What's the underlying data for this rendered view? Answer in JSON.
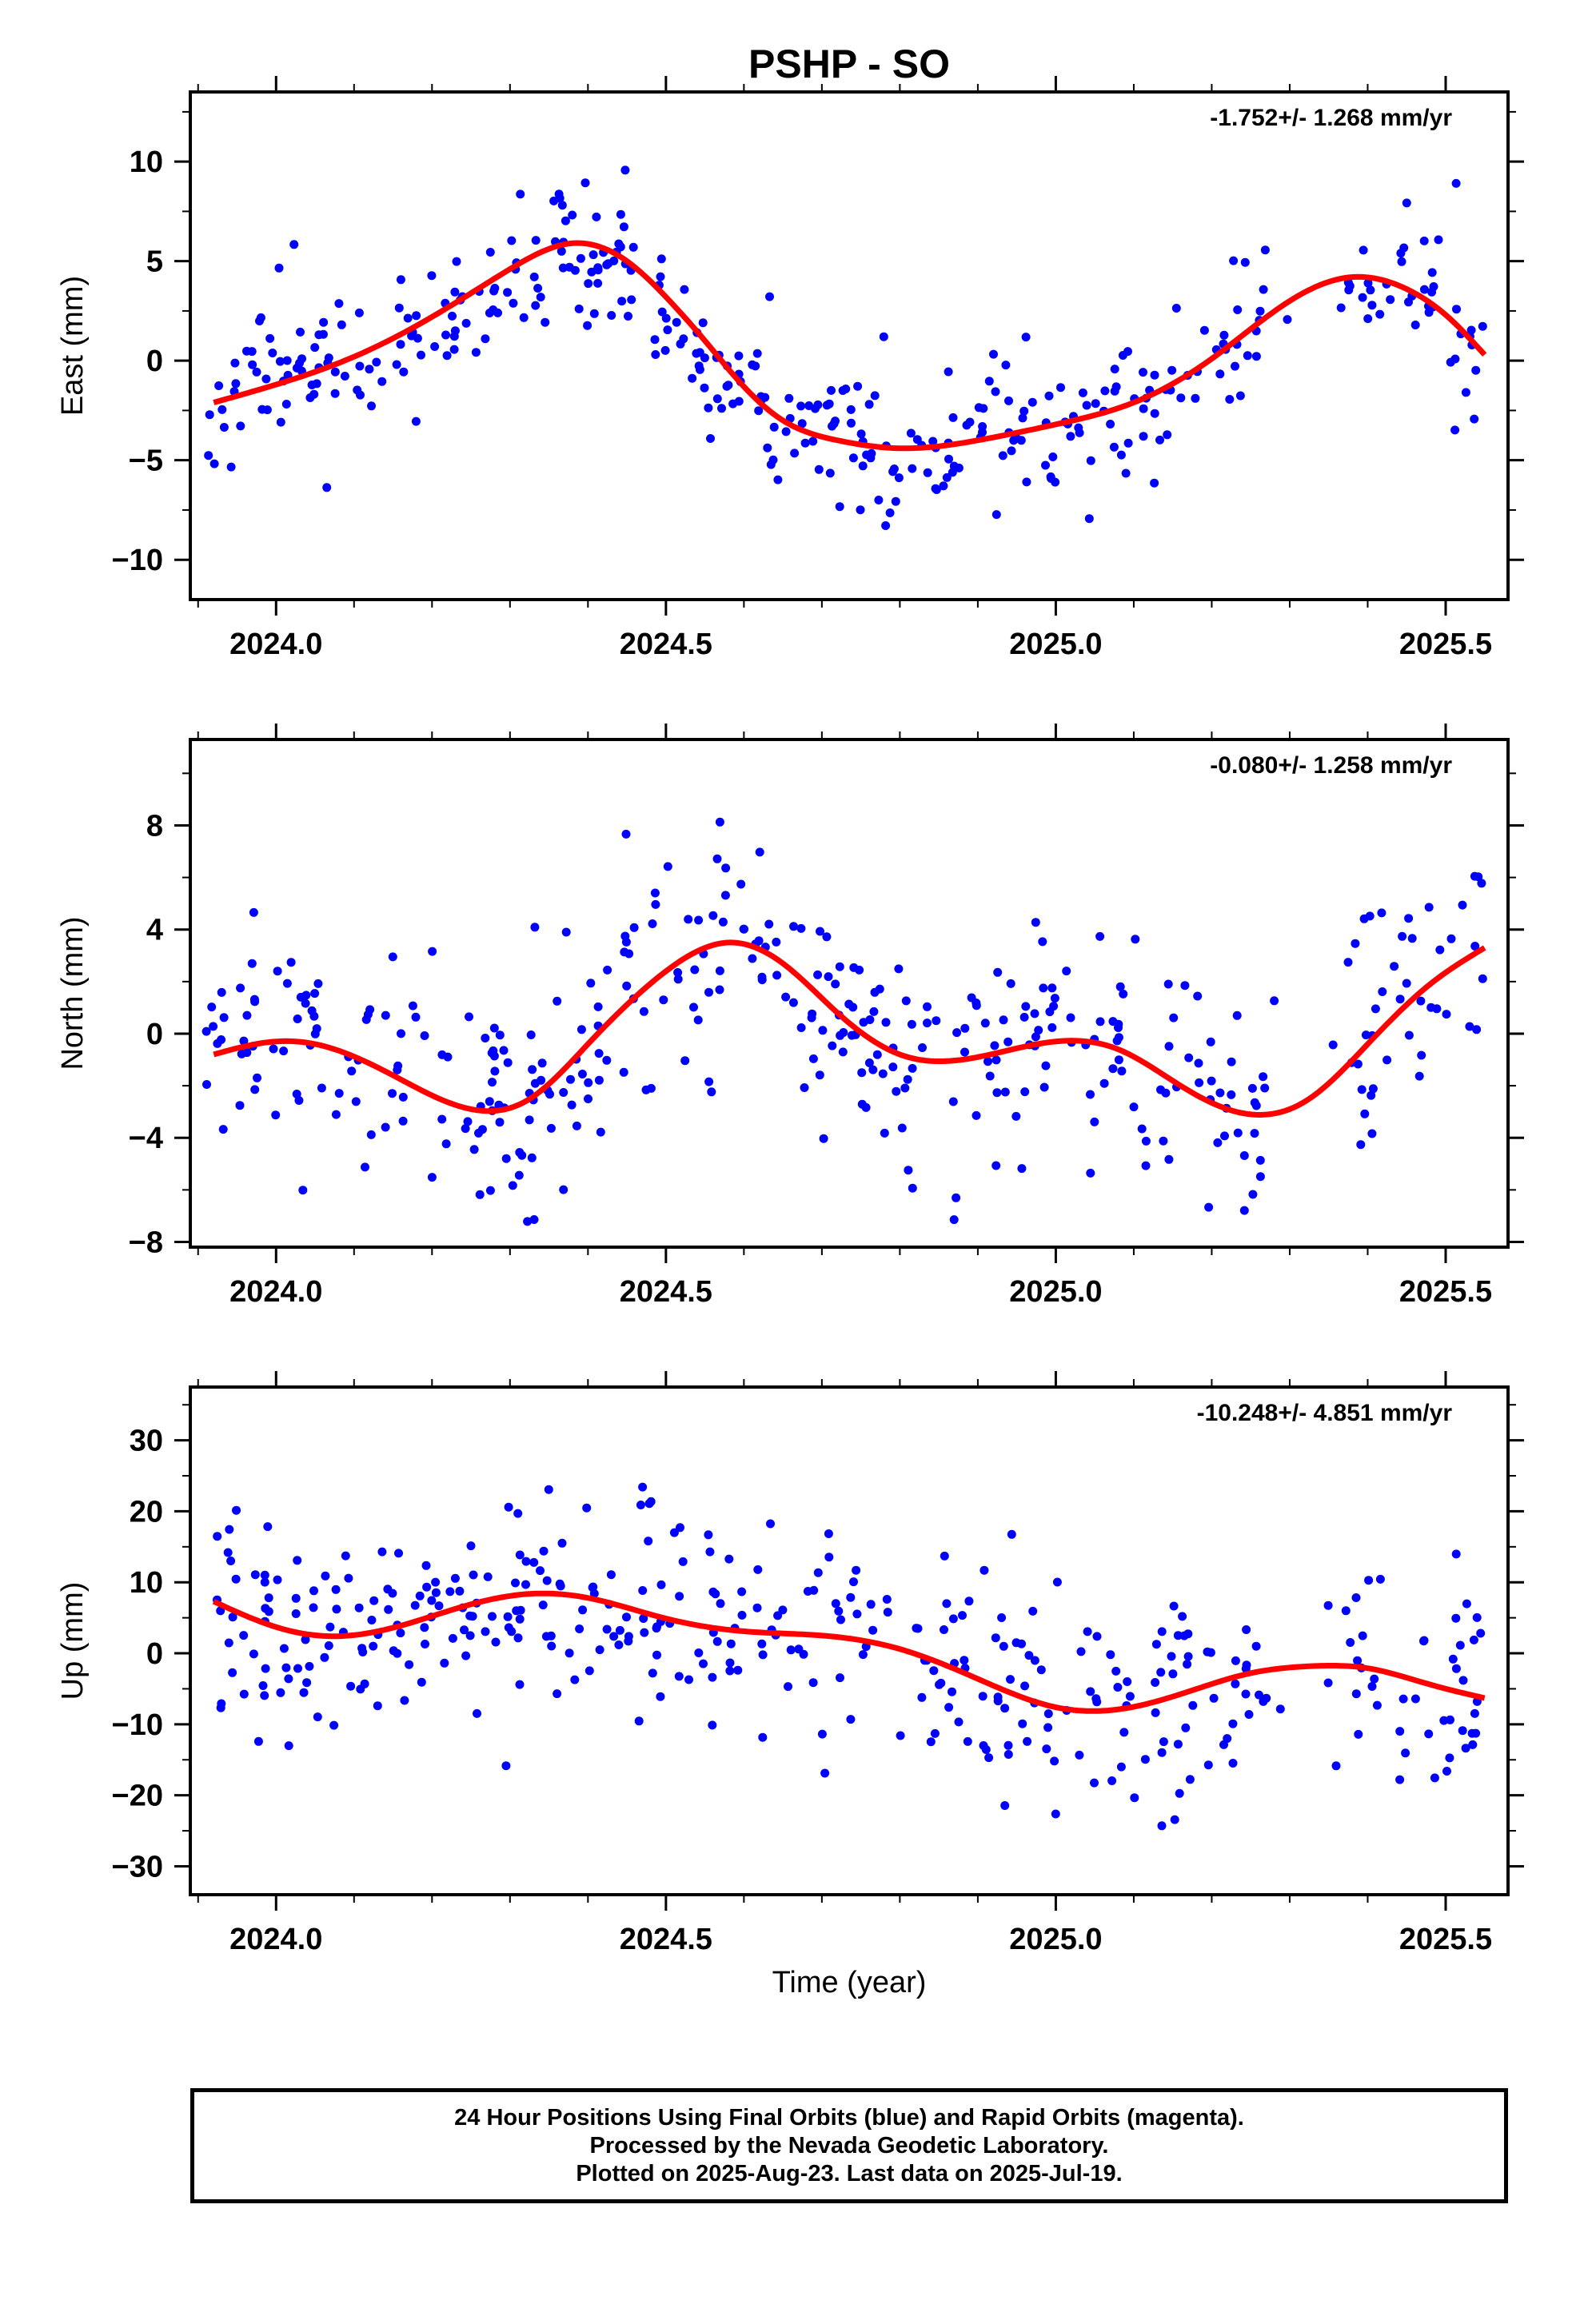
{
  "title": "PSHP - SO",
  "xlabel": "Time (year)",
  "footer": {
    "line1": "24 Hour Positions Using Final Orbits (blue) and Rapid Orbits (magenta).",
    "line2": "Processed by the Nevada Geodetic Laboratory.",
    "line3": "Plotted on 2025-Aug-23. Last data on 2025-Jul-19."
  },
  "colors": {
    "points": "#0000ff",
    "fit": "#ff0000",
    "axis": "#000000"
  },
  "chart_data": [
    {
      "type": "scatter",
      "ylabel": "East (mm)",
      "rate_label": "-1.752+/- 1.268 mm/yr",
      "xlim": [
        2023.89,
        2025.58
      ],
      "ylim": [
        -12,
        13.5
      ],
      "xticks": [
        2024.0,
        2024.5,
        2025.0,
        2025.5
      ],
      "xtick_labels": [
        "2024.0",
        "2024.5",
        "2025.0",
        "2025.5"
      ],
      "yticks": [
        -10,
        -5,
        0,
        5,
        10
      ],
      "ytick_labels": [
        "−10",
        "−5",
        "0",
        "5",
        "10"
      ],
      "x_range": [
        2023.91,
        2025.55
      ],
      "fit": {
        "x": [
          2023.92,
          2024.0,
          2024.1,
          2024.2,
          2024.3,
          2024.38,
          2024.45,
          2024.5,
          2024.55,
          2024.6,
          2024.65,
          2024.72,
          2024.8,
          2024.9,
          2025.0,
          2025.1,
          2025.2,
          2025.3,
          2025.38,
          2025.45,
          2025.5,
          2025.55
        ],
        "y": [
          -2.1,
          -1.2,
          0.2,
          2.2,
          4.6,
          5.9,
          5.0,
          3.2,
          1.0,
          -1.3,
          -3.0,
          -4.0,
          -4.4,
          -4.0,
          -3.2,
          -2.1,
          0.1,
          3.0,
          4.2,
          3.6,
          2.3,
          0.3
        ]
      },
      "scatter": 1.9,
      "n": 420,
      "seed": 11
    },
    {
      "type": "scatter",
      "ylabel": "North (mm)",
      "rate_label": "-0.080+/- 1.258 mm/yr",
      "xlim": [
        2023.89,
        2025.58
      ],
      "ylim": [
        -8.2,
        11.3
      ],
      "xticks": [
        2024.0,
        2024.5,
        2025.0,
        2025.5
      ],
      "xtick_labels": [
        "2024.0",
        "2024.5",
        "2025.0",
        "2025.5"
      ],
      "yticks": [
        -8,
        -4,
        0,
        4,
        8
      ],
      "ytick_labels": [
        "−8",
        "−4",
        "0",
        "4",
        "8"
      ],
      "x_range": [
        2023.91,
        2025.55
      ],
      "fit": {
        "x": [
          2023.92,
          2024.0,
          2024.05,
          2024.15,
          2024.25,
          2024.32,
          2024.4,
          2024.5,
          2024.58,
          2024.65,
          2024.72,
          2024.8,
          2024.9,
          2025.0,
          2025.08,
          2025.16,
          2025.25,
          2025.32,
          2025.4,
          2025.48,
          2025.55
        ],
        "y": [
          -0.8,
          -0.3,
          -0.4,
          -1.6,
          -2.9,
          -2.6,
          -0.4,
          2.4,
          3.5,
          2.7,
          0.8,
          -0.8,
          -0.9,
          -0.3,
          -0.6,
          -2.0,
          -3.1,
          -2.6,
          -0.4,
          1.9,
          3.3
        ]
      },
      "scatter": 2.1,
      "n": 420,
      "seed": 23
    },
    {
      "type": "scatter",
      "ylabel": "Up (mm)",
      "rate_label": "-10.248+/- 4.851 mm/yr",
      "xlim": [
        2023.89,
        2025.58
      ],
      "ylim": [
        -34,
        37.5
      ],
      "xticks": [
        2024.0,
        2024.5,
        2025.0,
        2025.5
      ],
      "xtick_labels": [
        "2024.0",
        "2024.5",
        "2025.0",
        "2025.5"
      ],
      "yticks": [
        -30,
        -20,
        -10,
        0,
        10,
        20,
        30
      ],
      "ytick_labels": [
        "−30",
        "−20",
        "−10",
        "0",
        "10",
        "20",
        "30"
      ],
      "x_range": [
        2023.91,
        2025.55
      ],
      "fit": {
        "x": [
          2023.92,
          2024.0,
          2024.07,
          2024.15,
          2024.25,
          2024.33,
          2024.4,
          2024.5,
          2024.6,
          2024.7,
          2024.8,
          2024.9,
          2025.0,
          2025.08,
          2025.15,
          2025.25,
          2025.33,
          2025.4,
          2025.48,
          2025.55
        ],
        "y": [
          7.3,
          3.7,
          2.4,
          3.6,
          6.9,
          8.4,
          7.8,
          4.9,
          3.1,
          2.5,
          0.6,
          -3.6,
          -7.6,
          -7.9,
          -6.1,
          -2.8,
          -1.8,
          -2.1,
          -4.4,
          -6.3
        ]
      },
      "scatter": 8.5,
      "n": 420,
      "seed": 37
    }
  ]
}
